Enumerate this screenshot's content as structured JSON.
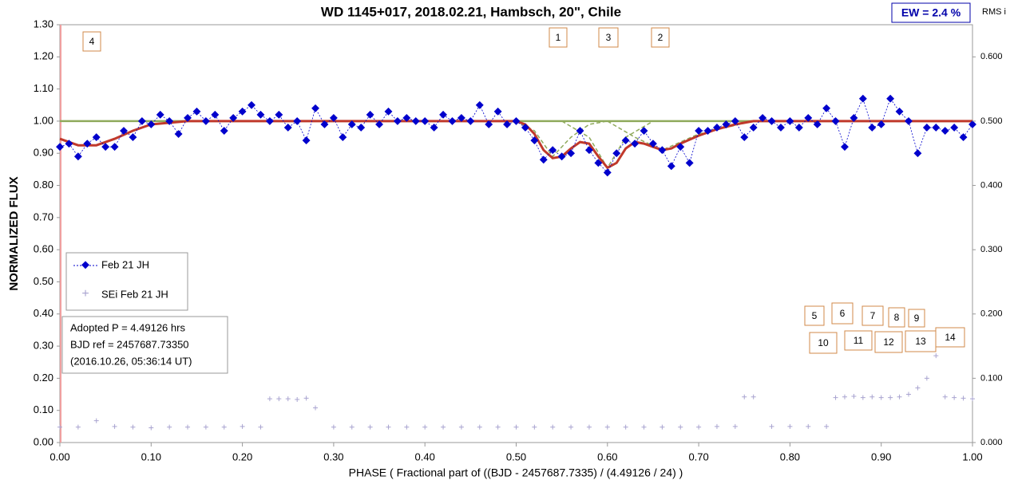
{
  "chart_data": {
    "type": "scatter",
    "title": "WD 1145+017, 2018.02.21,  Hambsch, 20\", Chile",
    "ew_label": "EW =  2.4 %",
    "y2_label": "RMS i",
    "y_label": "NORMALIZED  FLUX",
    "x_label": "PHASE  ( Fractional part of ((BJD - 2457687.7335)  / (4.49126  / 24) )",
    "info": [
      "Adopted P = 4.49126 hrs",
      "BJD ref = 2457687.73350",
      "(2016.10.26, 05:36:14 UT)"
    ],
    "annotations": [
      "4",
      "1",
      "3",
      "2",
      "5",
      "6",
      "7",
      "8",
      "9",
      "10",
      "11",
      "12",
      "13",
      "14"
    ],
    "xlim": [
      0,
      1
    ],
    "ylim": [
      0,
      1.3
    ],
    "y2lim": [
      0,
      0.65
    ],
    "xticks": [
      {
        "value": 0,
        "label": "0.00"
      },
      {
        "value": 0.1,
        "label": "0.10"
      },
      {
        "value": 0.2,
        "label": "0.20"
      },
      {
        "value": 0.3,
        "label": "0.30"
      },
      {
        "value": 0.4,
        "label": "0.40"
      },
      {
        "value": 0.5,
        "label": "0.50"
      },
      {
        "value": 0.6,
        "label": "0.60"
      },
      {
        "value": 0.7,
        "label": "0.70"
      },
      {
        "value": 0.8,
        "label": "0.80"
      },
      {
        "value": 0.9,
        "label": "0.90"
      },
      {
        "value": 1,
        "label": "1.00"
      }
    ],
    "yticks": [
      {
        "value": 0,
        "label": "0.00"
      },
      {
        "value": 0.1,
        "label": "0.10"
      },
      {
        "value": 0.2,
        "label": "0.20"
      },
      {
        "value": 0.3,
        "label": "0.30"
      },
      {
        "value": 0.4,
        "label": "0.40"
      },
      {
        "value": 0.5,
        "label": "0.50"
      },
      {
        "value": 0.6,
        "label": "0.60"
      },
      {
        "value": 0.7,
        "label": "0.70"
      },
      {
        "value": 0.8,
        "label": "0.80"
      },
      {
        "value": 0.9,
        "label": "0.90"
      },
      {
        "value": 1,
        "label": "1.00"
      },
      {
        "value": 1.1,
        "label": "1.10"
      },
      {
        "value": 1.2,
        "label": "1.20"
      },
      {
        "value": 1.3,
        "label": "1.30"
      }
    ],
    "y2ticks": [
      {
        "value": 0,
        "label": "0.000"
      },
      {
        "value": 0.1,
        "label": "0.100"
      },
      {
        "value": 0.2,
        "label": "0.200"
      },
      {
        "value": 0.3,
        "label": "0.300"
      },
      {
        "value": 0.4,
        "label": "0.400"
      },
      {
        "value": 0.5,
        "label": "0.500"
      },
      {
        "value": 0.6,
        "label": "0.600"
      }
    ],
    "series": [
      {
        "name": "Feb 21 JH",
        "color": "#0000cc",
        "x": [
          0,
          0.01,
          0.02,
          0.03,
          0.04,
          0.05,
          0.06,
          0.07,
          0.08,
          0.09,
          0.1,
          0.11,
          0.12,
          0.13,
          0.14,
          0.15,
          0.16,
          0.17,
          0.18,
          0.19,
          0.2,
          0.21,
          0.22,
          0.23,
          0.24,
          0.25,
          0.26,
          0.27,
          0.28,
          0.29,
          0.3,
          0.31,
          0.32,
          0.33,
          0.34,
          0.35,
          0.36,
          0.37,
          0.38,
          0.39,
          0.4,
          0.41,
          0.42,
          0.43,
          0.44,
          0.45,
          0.46,
          0.47,
          0.48,
          0.49,
          0.5,
          0.51,
          0.52,
          0.53,
          0.54,
          0.55,
          0.56,
          0.57,
          0.58,
          0.59,
          0.6,
          0.61,
          0.62,
          0.63,
          0.64,
          0.65,
          0.66,
          0.67,
          0.68,
          0.69,
          0.7,
          0.71,
          0.72,
          0.73,
          0.74,
          0.75,
          0.76,
          0.77,
          0.78,
          0.79,
          0.8,
          0.81,
          0.82,
          0.83,
          0.84,
          0.85,
          0.86,
          0.87,
          0.88,
          0.89,
          0.9,
          0.91,
          0.92,
          0.93,
          0.94,
          0.95,
          0.96,
          0.97,
          0.98,
          0.99,
          1
        ],
        "values": [
          0.92,
          0.93,
          0.89,
          0.93,
          0.95,
          0.92,
          0.92,
          0.97,
          0.95,
          1.0,
          0.99,
          1.02,
          1.0,
          0.96,
          1.01,
          1.03,
          1.0,
          1.02,
          0.97,
          1.01,
          1.03,
          1.05,
          1.02,
          1.0,
          1.02,
          0.98,
          1.0,
          0.94,
          1.04,
          0.99,
          1.01,
          0.95,
          0.99,
          0.98,
          1.02,
          0.99,
          1.03,
          1.0,
          1.01,
          1.0,
          1.0,
          0.98,
          1.02,
          1.0,
          1.01,
          1.0,
          1.05,
          0.99,
          1.03,
          0.99,
          1.0,
          0.98,
          0.94,
          0.88,
          0.91,
          0.89,
          0.9,
          0.97,
          0.91,
          0.87,
          0.84,
          0.9,
          0.94,
          0.93,
          0.97,
          0.93,
          0.91,
          0.86,
          0.92,
          0.87,
          0.97,
          0.97,
          0.98,
          0.99,
          1.0,
          0.95,
          0.98,
          1.01,
          1.0,
          0.98,
          1.0,
          0.98,
          1.01,
          0.99,
          1.04,
          1.0,
          0.92,
          1.01,
          1.07,
          0.98,
          0.99,
          1.07,
          1.03,
          1.0,
          0.9,
          0.98,
          0.98,
          0.97,
          0.98,
          0.95,
          0.99
        ]
      },
      {
        "name": "SEi Feb 21 JH",
        "color": "#a9a4d0",
        "axis": "y2",
        "x": [
          0,
          0.02,
          0.04,
          0.06,
          0.08,
          0.1,
          0.12,
          0.14,
          0.16,
          0.18,
          0.2,
          0.22,
          0.23,
          0.24,
          0.25,
          0.26,
          0.27,
          0.28,
          0.3,
          0.32,
          0.34,
          0.36,
          0.38,
          0.4,
          0.42,
          0.44,
          0.46,
          0.48,
          0.5,
          0.52,
          0.54,
          0.56,
          0.58,
          0.6,
          0.62,
          0.64,
          0.66,
          0.68,
          0.7,
          0.72,
          0.74,
          0.75,
          0.76,
          0.78,
          0.8,
          0.82,
          0.84,
          0.85,
          0.86,
          0.87,
          0.88,
          0.89,
          0.9,
          0.91,
          0.92,
          0.93,
          0.94,
          0.95,
          0.96,
          0.97,
          0.98,
          0.99,
          1
        ],
        "values": [
          0.024,
          0.024,
          0.034,
          0.025,
          0.024,
          0.023,
          0.024,
          0.024,
          0.024,
          0.024,
          0.025,
          0.024,
          0.068,
          0.068,
          0.068,
          0.067,
          0.069,
          0.054,
          0.024,
          0.024,
          0.024,
          0.024,
          0.024,
          0.024,
          0.024,
          0.024,
          0.024,
          0.024,
          0.024,
          0.024,
          0.024,
          0.024,
          0.024,
          0.024,
          0.024,
          0.024,
          0.024,
          0.024,
          0.024,
          0.025,
          0.025,
          0.071,
          0.071,
          0.025,
          0.025,
          0.025,
          0.025,
          0.07,
          0.071,
          0.072,
          0.07,
          0.071,
          0.07,
          0.07,
          0.071,
          0.075,
          0.085,
          0.1,
          0.135,
          0.071,
          0.07,
          0.069,
          0.068
        ]
      }
    ],
    "model": {
      "color": "#c0392b",
      "x": [
        0,
        0.02,
        0.04,
        0.06,
        0.08,
        0.1,
        0.14,
        0.5,
        0.51,
        0.52,
        0.53,
        0.54,
        0.55,
        0.56,
        0.57,
        0.58,
        0.59,
        0.6,
        0.61,
        0.62,
        0.63,
        0.64,
        0.65,
        0.66,
        0.67,
        0.68,
        0.7,
        0.72,
        0.74,
        0.76,
        1
      ],
      "values": [
        0.945,
        0.925,
        0.925,
        0.945,
        0.97,
        0.99,
        1.0,
        1.0,
        0.99,
        0.96,
        0.91,
        0.885,
        0.89,
        0.915,
        0.935,
        0.93,
        0.89,
        0.855,
        0.87,
        0.915,
        0.935,
        0.93,
        0.92,
        0.91,
        0.915,
        0.93,
        0.955,
        0.975,
        0.99,
        1.0,
        1.0
      ]
    },
    "components": {
      "color": "#8faa5c",
      "lines": [
        {
          "x": [
            0,
            1
          ],
          "values": [
            1.0,
            1.0
          ]
        },
        {
          "x": [
            0.5,
            0.52,
            0.54,
            0.56,
            0.58,
            0.6
          ],
          "values": [
            1.0,
            0.97,
            0.89,
            0.95,
            0.99,
            1.0
          ]
        },
        {
          "x": [
            0.55,
            0.58,
            0.6,
            0.62,
            0.65
          ],
          "values": [
            1.0,
            0.95,
            0.855,
            0.95,
            1.0
          ]
        },
        {
          "x": [
            0.6,
            0.63,
            0.66,
            0.7,
            0.76
          ],
          "values": [
            1.0,
            0.95,
            0.91,
            0.96,
            1.0
          ]
        }
      ]
    }
  }
}
